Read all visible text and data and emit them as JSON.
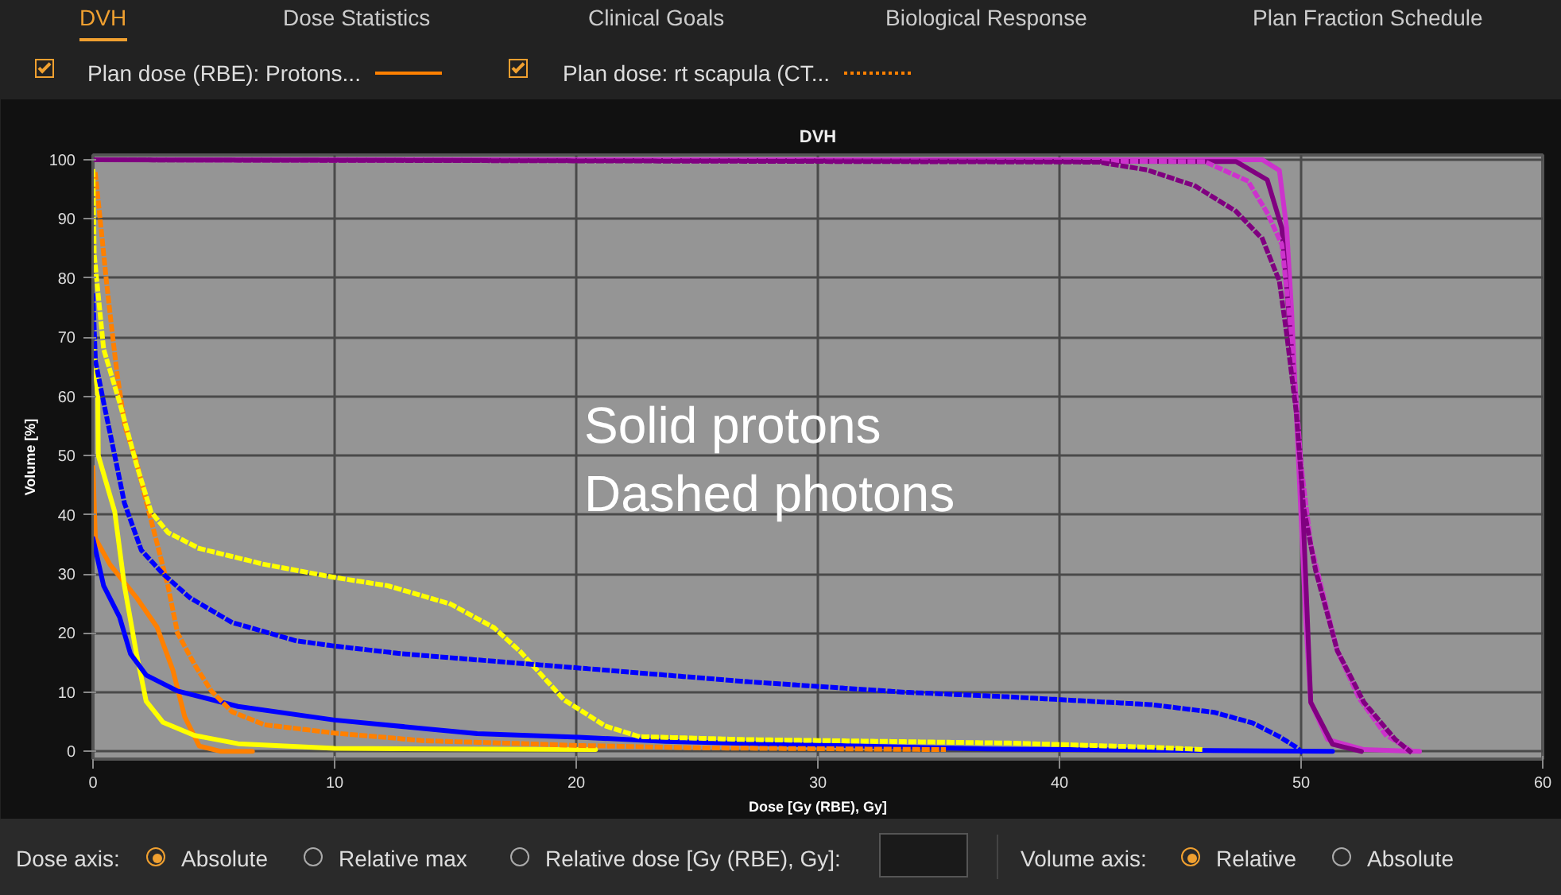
{
  "chart_data": {
    "type": "line",
    "title": "DVH",
    "xlabel": "Dose [Gy (RBE), Gy]",
    "ylabel": "Volume [%]",
    "xlim": [
      0,
      60
    ],
    "ylim": [
      -1.3,
      100.8
    ],
    "xticks": [
      0,
      10,
      20,
      30,
      40,
      50,
      60
    ],
    "yticks": [
      0,
      10,
      20,
      30,
      40,
      50,
      60,
      70,
      80,
      90,
      100
    ],
    "grid": true,
    "marker": "none",
    "annotations": [
      "DVH",
      "Dose Statistics",
      "Clinical Goals",
      "Biological Response",
      "Plan Fraction Schedule",
      "Plan dose (RBE): Protons...",
      "Plan dose: rt scapula (CT...",
      "Solid protons",
      "Dashed photons",
      "Dose axis:",
      "Absolute",
      "Relative max",
      "Relative dose [Gy (RBE), Gy]:",
      "Volume axis:",
      "Relative",
      "Absolute"
    ],
    "series": [
      {
        "color": "#ff8000",
        "line_style": "solid",
        "x": [
          0,
          0.1,
          0.7,
          1.8,
          2.65,
          3.3,
          3.8,
          4.4,
          5.3,
          6.6
        ],
        "values": [
          48,
          36,
          31.6,
          26,
          21,
          13.8,
          5.8,
          0.9,
          0,
          0
        ]
      },
      {
        "color": "#ffff00",
        "line_style": "solid",
        "x": [
          0,
          0.2,
          0.22,
          0.9,
          1.3,
          1.8,
          2.2,
          2.9,
          4.2,
          6,
          10,
          20.8
        ],
        "values": [
          69,
          60,
          50,
          40.5,
          28,
          16.5,
          8.5,
          4.9,
          2.7,
          1.3,
          0.5,
          0.3
        ]
      },
      {
        "color": "#0000ff",
        "line_style": "solid",
        "x": [
          0,
          0.44,
          1.1,
          1.55,
          2.2,
          3.5,
          6,
          10,
          15.9,
          20.1,
          23.7,
          33.6,
          37,
          51.3
        ],
        "values": [
          36,
          28,
          22.7,
          16.5,
          12.9,
          10.2,
          7.6,
          5.3,
          3.0,
          2.4,
          1.7,
          0.7,
          0.4,
          0
        ]
      },
      {
        "color": "#cc33cc",
        "line_style": "solid",
        "x": [
          0,
          48.4,
          49.1,
          49.4,
          49.6,
          49.9,
          50.2,
          50.4,
          51.1,
          52.6,
          54.9
        ],
        "values": [
          100,
          100,
          98.2,
          88.5,
          75,
          48.4,
          21.7,
          8.3,
          2,
          0.3,
          0
        ]
      },
      {
        "color": "#800080",
        "line_style": "solid",
        "x": [
          0,
          47.3,
          48.6,
          49.2,
          50,
          50.4,
          51.3,
          52.5
        ],
        "values": [
          100,
          99.7,
          96.6,
          88.5,
          48.4,
          8.3,
          1.2,
          0
        ]
      },
      {
        "color": "#ff8000",
        "line_style": "dotted",
        "x": [
          0.1,
          0.33,
          0.55,
          0.77,
          1,
          1.33,
          1.77,
          2.2,
          2.65,
          3.1,
          3.5,
          4.2,
          4.9,
          5.75,
          7.1,
          10,
          13.7,
          17.9,
          20,
          25,
          35.2
        ],
        "values": [
          97.5,
          88.6,
          79.7,
          71.7,
          63.7,
          54.8,
          49.4,
          42.3,
          35.2,
          28,
          20,
          14.7,
          10.2,
          6.7,
          4.5,
          3.1,
          1.8,
          1.3,
          1.0,
          0.6,
          0.3
        ]
      },
      {
        "color": "#ffff00",
        "line_style": "dotted",
        "x": [
          0,
          0.05,
          0.44,
          1.1,
          1.8,
          2.4,
          3.1,
          4.4,
          7.1,
          10,
          12.2,
          14.8,
          16.6,
          17.7,
          19.5,
          21.2,
          22.6,
          27,
          38,
          43.8,
          46
        ],
        "values": [
          98,
          84,
          68,
          59,
          48.5,
          40.5,
          37,
          34.3,
          31.6,
          29.4,
          28,
          24.9,
          20.9,
          16.8,
          8.7,
          4.3,
          2.5,
          2.0,
          1.4,
          0.7,
          0.3
        ]
      },
      {
        "color": "#0000ff",
        "line_style": "dotted",
        "x": [
          0,
          0.1,
          0.44,
          0.9,
          1.3,
          2,
          2.9,
          4,
          5.75,
          8.4,
          10,
          12.8,
          17,
          20.4,
          27,
          33.6,
          38,
          43.8,
          46.4,
          48,
          49.1,
          49.8,
          50
        ],
        "values": [
          77,
          66,
          59,
          50,
          42,
          34,
          30,
          26,
          21.8,
          18.7,
          17.8,
          16.5,
          15.1,
          14.0,
          11.8,
          10.0,
          9.2,
          7.9,
          6.6,
          4.8,
          2.5,
          0.7,
          0
        ]
      },
      {
        "color": "#cc33cc",
        "line_style": "dotted",
        "x": [
          0,
          46,
          47.8,
          48.6,
          49.2,
          49.6,
          50,
          50.4,
          51,
          51.5,
          52.4,
          53.5,
          54.6
        ],
        "values": [
          100,
          99.7,
          96.4,
          91,
          85.7,
          70.6,
          48.4,
          35,
          25,
          17,
          9,
          2.8,
          0
        ]
      },
      {
        "color": "#800080",
        "line_style": "dotted",
        "x": [
          0,
          41.6,
          43.6,
          45.6,
          47.3,
          48.4,
          49.1,
          49.4,
          49.8,
          50.1,
          50.6,
          51.5,
          52.6,
          53.9,
          54.5
        ],
        "values": [
          100,
          99.6,
          98.3,
          95.6,
          91.3,
          86.6,
          79.5,
          70.6,
          57.3,
          41.3,
          30.6,
          17,
          8.3,
          2,
          0
        ]
      }
    ]
  }
}
